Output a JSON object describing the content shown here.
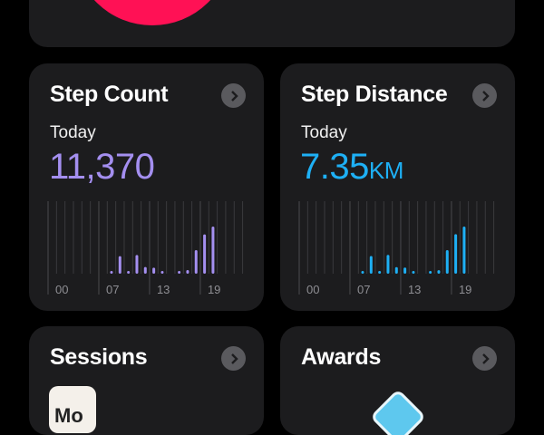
{
  "top_card": {
    "ring_color": "#ff1155"
  },
  "cards": [
    {
      "title": "Step Count",
      "period": "Today",
      "value": "11,370",
      "unit": "",
      "color": "#a48ff0",
      "chart_data": {
        "type": "bar",
        "x_ticks": [
          "00",
          "07",
          "13",
          "19"
        ],
        "hours": [
          7,
          8,
          9,
          10,
          11,
          12,
          13,
          15,
          16,
          17,
          18,
          19
        ],
        "values": [
          160,
          1160,
          160,
          1240,
          440,
          400,
          160,
          160,
          240,
          1560,
          2600,
          3120
        ]
      }
    },
    {
      "title": "Step Distance",
      "period": "Today",
      "value": "7.35",
      "unit": "KM",
      "color": "#1eb0f5",
      "chart_data": {
        "type": "bar",
        "x_ticks": [
          "00",
          "07",
          "13",
          "19"
        ],
        "hours": [
          7,
          8,
          9,
          10,
          11,
          12,
          13,
          15,
          16,
          17,
          18,
          19
        ],
        "values": [
          0.1,
          0.75,
          0.1,
          0.8,
          0.28,
          0.26,
          0.1,
          0.1,
          0.15,
          1.0,
          1.68,
          2.0
        ]
      }
    },
    {
      "title": "Sessions",
      "thumbnail_text": "Mo"
    },
    {
      "title": "Awards"
    }
  ]
}
